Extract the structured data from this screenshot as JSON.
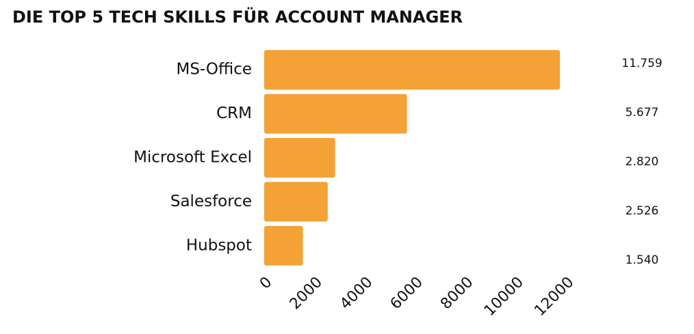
{
  "chart_data": {
    "type": "barh",
    "title": "DIE TOP 5 TECH SKILLS FÜR ACCOUNT MANAGER",
    "categories": [
      "MS-Office",
      "CRM",
      "Microsoft Excel",
      "Salesforce",
      "Hubspot"
    ],
    "values": [
      11759,
      5677,
      2820,
      2526,
      1540
    ],
    "value_labels": [
      "11.759",
      "5.677",
      "2.820",
      "2.526",
      "1.540"
    ],
    "color": "#f4a236",
    "xlim": [
      0,
      12000
    ],
    "xticks": [
      0,
      2000,
      4000,
      6000,
      8000,
      10000,
      12000
    ]
  }
}
